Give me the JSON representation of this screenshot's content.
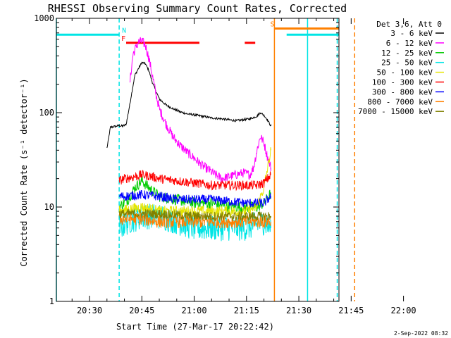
{
  "chart_data": {
    "type": "line",
    "title": "RHESSI Observing Summary Count Rates, Corrected",
    "xlabel": "Start Time (27-Mar-17 20:22:42)",
    "ylabel": "Corrected Count Rate (s⁻¹ detector⁻¹)",
    "yscale": "log",
    "ylim": [
      1,
      1000
    ],
    "xlim_minutes": [
      20.5,
      101.5
    ],
    "y_ticks": [
      {
        "value": 1,
        "label": "1"
      },
      {
        "value": 10,
        "label": "10"
      },
      {
        "value": 100,
        "label": "100"
      },
      {
        "value": 1000,
        "label": "1000"
      }
    ],
    "x_ticks": [
      {
        "minute": 30,
        "label": "20:30"
      },
      {
        "minute": 45,
        "label": "20:45"
      },
      {
        "minute": 60,
        "label": "21:00"
      },
      {
        "minute": 75,
        "label": "21:15"
      },
      {
        "minute": 90,
        "label": "21:30"
      },
      {
        "minute": 105,
        "label": "21:45"
      },
      {
        "minute": 120,
        "label": "22:00"
      }
    ],
    "legend": {
      "title": "Det 3,6, Att 0",
      "placement": "right",
      "entries": [
        {
          "label": "3 - 6 keV",
          "color": "#000000"
        },
        {
          "label": "6 - 12 keV",
          "color": "#ff00ff"
        },
        {
          "label": "12 - 25 keV",
          "color": "#00cc00"
        },
        {
          "label": "25 - 50 keV",
          "color": "#00e5e5"
        },
        {
          "label": "50 - 100 keV",
          "color": "#e5e500"
        },
        {
          "label": "100 - 300 keV",
          "color": "#ff0000"
        },
        {
          "label": "300 - 800 keV",
          "color": "#0000ff"
        },
        {
          "label": "800 - 7000 keV",
          "color": "#ff8000"
        },
        {
          "label": "7000 - 15000 keV",
          "color": "#808000"
        }
      ]
    },
    "series": [
      {
        "name": "3 - 6 keV",
        "color": "#000000",
        "x": [
          35,
          36,
          38.5,
          39.5,
          40.5,
          41.5,
          43,
          45,
          46,
          47,
          48,
          49,
          50,
          52,
          54,
          56,
          58,
          60,
          62,
          65,
          68,
          70,
          72,
          74,
          76,
          78,
          79,
          80,
          81,
          82
        ],
        "y": [
          42,
          70,
          73,
          72,
          75,
          120,
          250,
          340,
          330,
          280,
          210,
          170,
          140,
          120,
          110,
          102,
          97,
          95,
          92,
          88,
          86,
          84,
          82,
          84,
          86,
          92,
          100,
          94,
          84,
          72
        ]
      },
      {
        "name": "6 - 12 keV",
        "color": "#ff00ff",
        "x": [
          41.5,
          42.5,
          44,
          45,
          46,
          47,
          48,
          49,
          50,
          52,
          54,
          56,
          58,
          60,
          62,
          64,
          66,
          68,
          70,
          72,
          74,
          76,
          77,
          78,
          79,
          80,
          81,
          82
        ],
        "y": [
          200,
          420,
          560,
          570,
          520,
          380,
          250,
          160,
          110,
          75,
          55,
          45,
          38,
          33,
          28,
          25,
          22,
          20,
          21,
          22,
          23,
          22,
          26,
          40,
          56,
          48,
          34,
          26
        ]
      },
      {
        "name": "12 - 25 keV",
        "color": "#00cc00",
        "x": [
          38.5,
          41,
          43,
          45,
          47,
          50,
          55,
          60,
          65,
          70,
          75,
          78,
          80,
          82
        ],
        "y": [
          10,
          12,
          16,
          19,
          16,
          13,
          12,
          11,
          11,
          10,
          10,
          10,
          11,
          14
        ]
      },
      {
        "name": "25 - 50 keV",
        "color": "#00e5e5",
        "x": [
          38.5,
          41,
          45,
          50,
          55,
          60,
          65,
          70,
          75,
          80,
          82
        ],
        "y": [
          6,
          7,
          8,
          8,
          7,
          6,
          6,
          6,
          6,
          7,
          6
        ]
      },
      {
        "name": "50 - 100 keV",
        "color": "#e5e500",
        "x": [
          38.5,
          45,
          50,
          60,
          70,
          75,
          78,
          80,
          82
        ],
        "y": [
          9,
          10,
          9,
          9,
          9,
          9,
          10,
          16,
          40
        ]
      },
      {
        "name": "100 - 300 keV",
        "color": "#ff0000",
        "x": [
          38.5,
          40,
          43,
          45,
          48,
          50,
          55,
          60,
          65,
          70,
          75,
          78,
          80,
          82
        ],
        "y": [
          19,
          20,
          21,
          22,
          21,
          20,
          19,
          18,
          17,
          17,
          17,
          17,
          18,
          22
        ]
      },
      {
        "name": "300 - 800 keV",
        "color": "#0000ff",
        "x": [
          38.5,
          40,
          45,
          50,
          55,
          60,
          65,
          70,
          75,
          80,
          82
        ],
        "y": [
          13,
          13,
          13.5,
          13,
          12,
          12,
          12,
          11.5,
          11,
          11,
          13
        ]
      },
      {
        "name": "800 - 7000 keV",
        "color": "#ff8000",
        "x": [
          38.5,
          45,
          50,
          55,
          60,
          65,
          70,
          75,
          80,
          82
        ],
        "y": [
          7.5,
          7.5,
          7,
          7,
          7,
          7,
          7,
          7,
          7,
          7
        ]
      },
      {
        "name": "7000 - 15000 keV",
        "color": "#808000",
        "x": [
          38.5,
          45,
          50,
          60,
          70,
          80,
          82
        ],
        "y": [
          8.5,
          8.5,
          8.5,
          8,
          8,
          8,
          8
        ]
      }
    ],
    "flag_bars": [
      {
        "label": "N",
        "color": "#00e5e5",
        "y": 670,
        "segments": [
          [
            20.5,
            38.5
          ],
          [
            86.5,
            102
          ]
        ]
      },
      {
        "label": "F",
        "color": "#ff0000",
        "y": 550,
        "segments": [
          [
            40.5,
            61.5
          ],
          [
            74.5,
            77.5
          ]
        ]
      },
      {
        "label": "S",
        "color": "#ff8000",
        "y": 780,
        "segments": [
          [
            83,
            106
          ]
        ]
      }
    ],
    "vlines": [
      {
        "minute": 20.5,
        "color": "#00e5e5",
        "style": "solid"
      },
      {
        "minute": 38.5,
        "color": "#00e5e5",
        "style": "dashed"
      },
      {
        "minute": 83,
        "color": "#ff8000",
        "style": "solid"
      },
      {
        "minute": 92.5,
        "color": "#00e5e5",
        "style": "solid"
      },
      {
        "minute": 101,
        "color": "#00e5e5",
        "style": "dashed"
      },
      {
        "minute": 106,
        "color": "#ff8000",
        "style": "dashed"
      }
    ]
  },
  "footer": {
    "date": "2-Sep-2022 08:32"
  }
}
